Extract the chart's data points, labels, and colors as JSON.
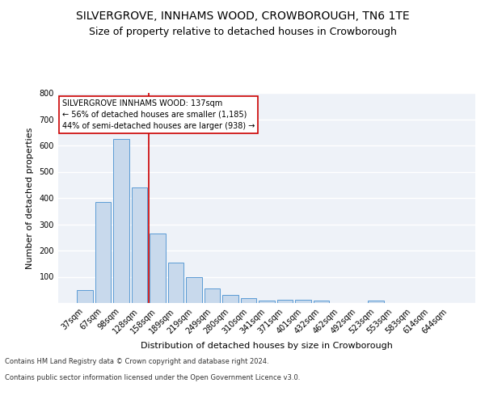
{
  "title": "SILVERGROVE, INNHAMS WOOD, CROWBOROUGH, TN6 1TE",
  "subtitle": "Size of property relative to detached houses in Crowborough",
  "xlabel": "Distribution of detached houses by size in Crowborough",
  "ylabel": "Number of detached properties",
  "bar_labels": [
    "37sqm",
    "67sqm",
    "98sqm",
    "128sqm",
    "158sqm",
    "189sqm",
    "219sqm",
    "249sqm",
    "280sqm",
    "310sqm",
    "341sqm",
    "371sqm",
    "401sqm",
    "432sqm",
    "462sqm",
    "492sqm",
    "523sqm",
    "553sqm",
    "583sqm",
    "614sqm",
    "644sqm"
  ],
  "bar_values": [
    50,
    385,
    625,
    440,
    265,
    153,
    99,
    55,
    30,
    17,
    10,
    13,
    12,
    8,
    0,
    0,
    8,
    0,
    0,
    0,
    0
  ],
  "bar_color": "#c8d9ec",
  "bar_edge_color": "#5b9bd5",
  "vline_x": 3.5,
  "vline_color": "#cc0000",
  "annotation_text": "SILVERGROVE INNHAMS WOOD: 137sqm\n← 56% of detached houses are smaller (1,185)\n44% of semi-detached houses are larger (938) →",
  "annotation_box_color": "#ffffff",
  "annotation_box_edge": "#cc0000",
  "ylim": [
    0,
    800
  ],
  "yticks": [
    0,
    100,
    200,
    300,
    400,
    500,
    600,
    700,
    800
  ],
  "footer_line1": "Contains HM Land Registry data © Crown copyright and database right 2024.",
  "footer_line2": "Contains public sector information licensed under the Open Government Licence v3.0.",
  "bg_color": "#eef2f8",
  "grid_color": "#ffffff",
  "title_fontsize": 10,
  "subtitle_fontsize": 9,
  "annotation_fontsize": 7,
  "ylabel_fontsize": 8,
  "xlabel_fontsize": 8,
  "tick_fontsize": 7,
  "footer_fontsize": 6
}
